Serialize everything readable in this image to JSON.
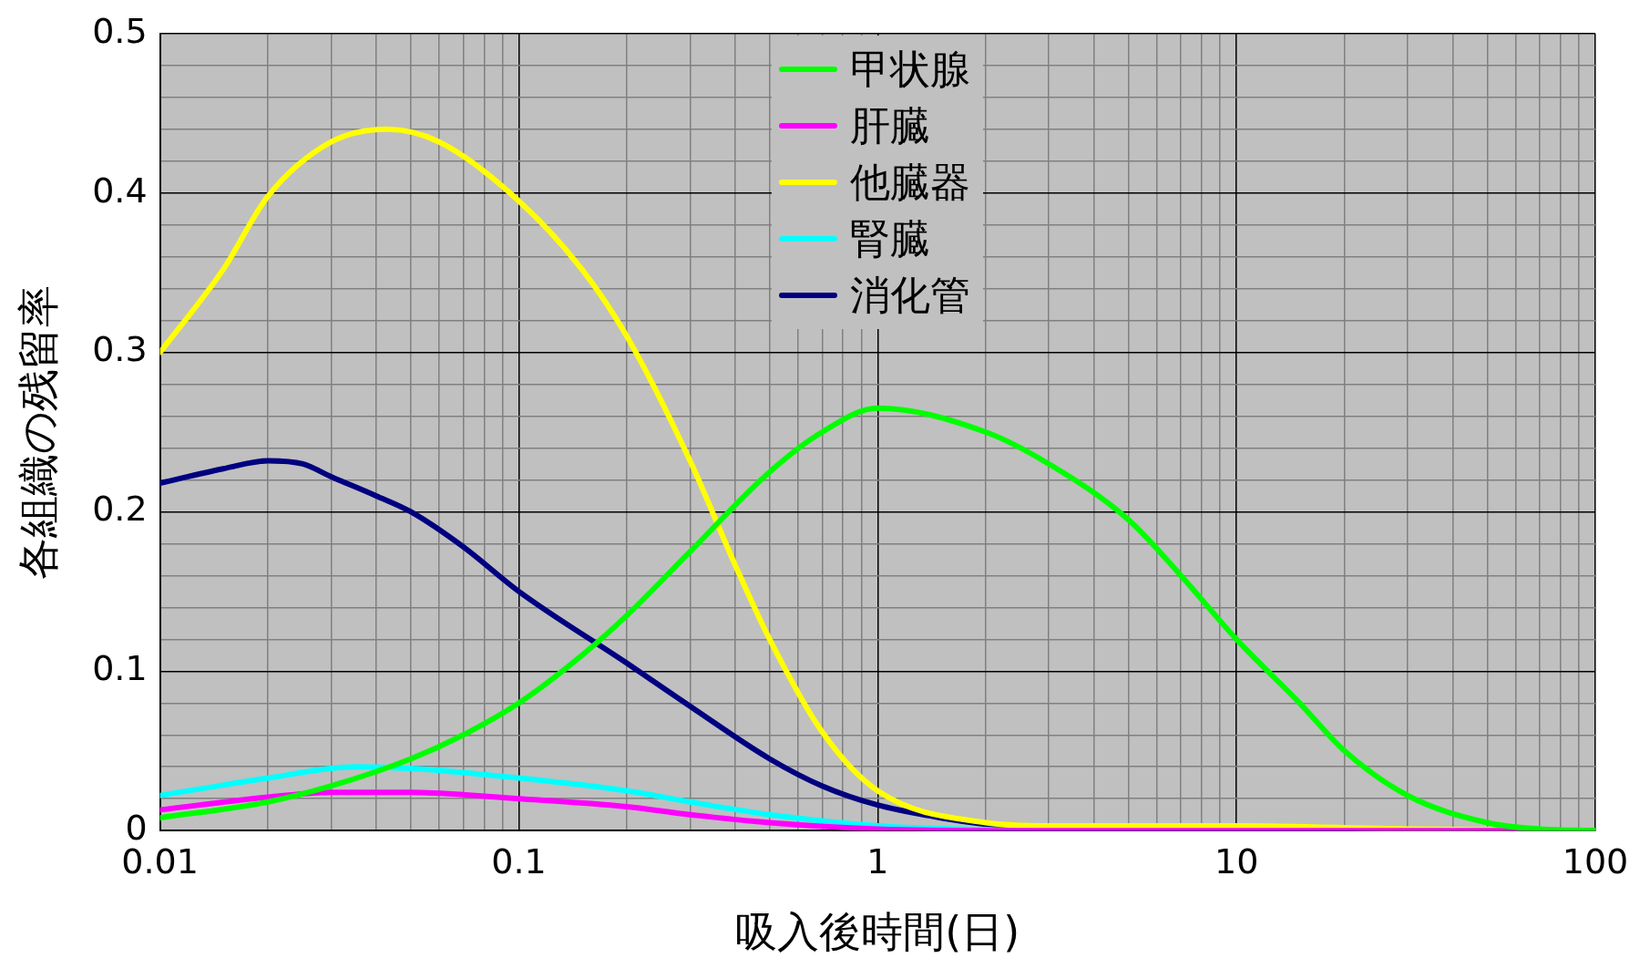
{
  "chart_data": {
    "type": "line",
    "xlabel": "吸入後時間(日)",
    "ylabel": "各組織の残留率",
    "log": "x",
    "xlim": [
      0.01,
      100
    ],
    "xticks": [
      0.01,
      {
        "value": 0.02,
        "label": null
      },
      {
        "value": 0.03,
        "label": null
      },
      {
        "value": 0.04,
        "label": null
      },
      {
        "value": 0.05,
        "label": null
      },
      {
        "value": 0.06,
        "label": null
      },
      {
        "value": 0.07,
        "label": null
      },
      {
        "value": 0.08,
        "label": null
      },
      {
        "value": 0.09,
        "label": null
      },
      0.1,
      {
        "value": 0.2,
        "label": null
      },
      {
        "value": 0.3,
        "label": null
      },
      {
        "value": 0.4,
        "label": null
      },
      {
        "value": 0.5,
        "label": null
      },
      {
        "value": 0.6,
        "label": null
      },
      {
        "value": 0.7,
        "label": null
      },
      {
        "value": 0.8,
        "label": null
      },
      {
        "value": 0.9,
        "label": null
      },
      1,
      {
        "value": 2,
        "label": null
      },
      {
        "value": 3,
        "label": null
      },
      {
        "value": 4,
        "label": null
      },
      {
        "value": 5,
        "label": null
      },
      {
        "value": 6,
        "label": null
      },
      {
        "value": 7,
        "label": null
      },
      {
        "value": 8,
        "label": null
      },
      {
        "value": 9,
        "label": null
      },
      10,
      {
        "value": 20,
        "label": null
      },
      {
        "value": 30,
        "label": null
      },
      {
        "value": 40,
        "label": null
      },
      {
        "value": 50,
        "label": null
      },
      {
        "value": 60,
        "label": null
      },
      {
        "value": 70,
        "label": null
      },
      {
        "value": 80,
        "label": null
      },
      {
        "value": 90,
        "label": null
      },
      100
    ],
    "ylim": [
      0,
      0.5
    ],
    "yticks": [
      0,
      {
        "value": 0.02,
        "label": null
      },
      {
        "value": 0.04,
        "label": null
      },
      {
        "value": 0.06,
        "label": null
      },
      {
        "value": 0.08,
        "label": null
      },
      0.1,
      {
        "value": 0.12,
        "label": null
      },
      {
        "value": 0.14,
        "label": null
      },
      {
        "value": 0.16,
        "label": null
      },
      {
        "value": 0.18,
        "label": null
      },
      0.2,
      {
        "value": 0.22,
        "label": null
      },
      {
        "value": 0.24,
        "label": null
      },
      {
        "value": 0.26,
        "label": null
      },
      {
        "value": 0.28,
        "label": null
      },
      0.3,
      {
        "value": 0.32,
        "label": null
      },
      {
        "value": 0.34,
        "label": null
      },
      {
        "value": 0.36,
        "label": null
      },
      {
        "value": 0.38,
        "label": null
      },
      0.4,
      {
        "value": 0.42,
        "label": null
      },
      {
        "value": 0.44,
        "label": null
      },
      {
        "value": 0.46,
        "label": null
      },
      {
        "value": 0.48,
        "label": null
      },
      0.5
    ],
    "grid": true,
    "legend": "top",
    "series": [
      {
        "name": "甲状腺",
        "color": "#00ff00",
        "x": [
          0.01,
          0.02,
          0.03,
          0.05,
          0.07,
          0.1,
          0.15,
          0.2,
          0.3,
          0.5,
          0.7,
          1,
          2,
          3,
          5,
          7,
          10,
          15,
          20,
          30,
          50,
          70,
          100
        ],
        "values": [
          0.008,
          0.018,
          0.028,
          0.045,
          0.06,
          0.08,
          0.11,
          0.135,
          0.175,
          0.225,
          0.25,
          0.265,
          0.25,
          0.23,
          0.195,
          0.16,
          0.12,
          0.08,
          0.05,
          0.022,
          0.005,
          0.001,
          0
        ]
      },
      {
        "name": "肝臓",
        "color": "#ff00ff",
        "x": [
          0.01,
          0.02,
          0.03,
          0.05,
          0.1,
          0.2,
          0.3,
          0.5,
          1,
          2,
          100
        ],
        "values": [
          0.013,
          0.021,
          0.024,
          0.024,
          0.02,
          0.015,
          0.01,
          0.005,
          0.001,
          0,
          0
        ]
      },
      {
        "name": "他臓器",
        "color": "#ffff00",
        "x": [
          0.01,
          0.015,
          0.02,
          0.03,
          0.043,
          0.06,
          0.1,
          0.15,
          0.2,
          0.3,
          0.4,
          0.5,
          0.7,
          1,
          2,
          3,
          10,
          30,
          100
        ],
        "values": [
          0.3,
          0.352,
          0.398,
          0.432,
          0.44,
          0.432,
          0.395,
          0.352,
          0.31,
          0.232,
          0.167,
          0.12,
          0.062,
          0.025,
          0.005,
          0.003,
          0.003,
          0.001,
          0
        ]
      },
      {
        "name": "腎臓",
        "color": "#00ffff",
        "x": [
          0.01,
          0.02,
          0.035,
          0.05,
          0.1,
          0.2,
          0.3,
          0.5,
          1,
          2,
          3,
          100
        ],
        "values": [
          0.022,
          0.033,
          0.04,
          0.039,
          0.033,
          0.025,
          0.018,
          0.01,
          0.003,
          0.0005,
          0,
          0
        ]
      },
      {
        "name": "消化管",
        "color": "#000080",
        "x": [
          0.01,
          0.015,
          0.02,
          0.025,
          0.03,
          0.04,
          0.05,
          0.07,
          0.1,
          0.2,
          0.3,
          0.5,
          0.7,
          1,
          1.5,
          2,
          3,
          100
        ],
        "values": [
          0.218,
          0.227,
          0.232,
          0.23,
          0.222,
          0.21,
          0.2,
          0.178,
          0.15,
          0.105,
          0.078,
          0.045,
          0.028,
          0.016,
          0.008,
          0.004,
          0.001,
          0
        ]
      }
    ]
  }
}
